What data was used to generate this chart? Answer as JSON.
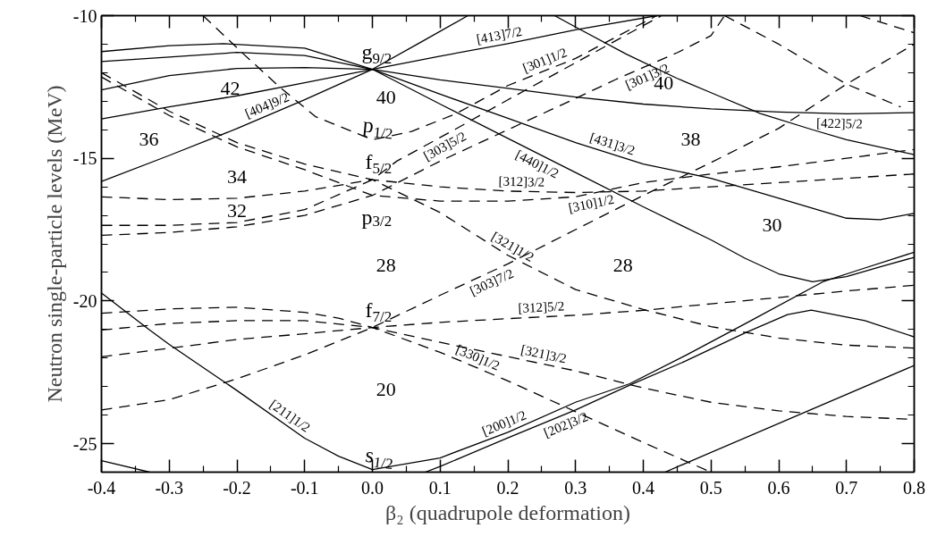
{
  "chart_data": {
    "type": "line",
    "xlabel": "β₂ (quadrupole deformation)",
    "ylabel": "Neutron single-particle levels (MeV)",
    "xlim": [
      -0.4,
      0.8
    ],
    "ylim": [
      -26,
      -10
    ],
    "xticks": [
      -0.4,
      {
        "value": -0.35,
        "label": null
      },
      -0.3,
      {
        "value": -0.25,
        "label": null
      },
      -0.2,
      {
        "value": -0.15,
        "label": null
      },
      -0.1,
      {
        "value": -0.05,
        "label": null
      },
      {
        "value": 0,
        "label": "0.0"
      },
      {
        "value": 0.05,
        "label": null
      },
      0.1,
      {
        "value": 0.15,
        "label": null
      },
      0.2,
      {
        "value": 0.25,
        "label": null
      },
      0.3,
      {
        "value": 0.35,
        "label": null
      },
      0.4,
      {
        "value": 0.45,
        "label": null
      },
      0.5,
      {
        "value": 0.55,
        "label": null
      },
      0.6,
      {
        "value": 0.65,
        "label": null
      },
      0.7,
      {
        "value": 0.75,
        "label": null
      },
      0.8
    ],
    "yticks": [
      -10,
      {
        "value": -11,
        "label": null
      },
      {
        "value": -12,
        "label": null
      },
      {
        "value": -13,
        "label": null
      },
      {
        "value": -14,
        "label": null
      },
      -15,
      {
        "value": -16,
        "label": null
      },
      {
        "value": -17,
        "label": null
      },
      {
        "value": -18,
        "label": null
      },
      {
        "value": -19,
        "label": null
      },
      -20,
      {
        "value": -21,
        "label": null
      },
      {
        "value": -22,
        "label": null
      },
      {
        "value": -23,
        "label": null
      },
      {
        "value": -24,
        "label": null
      },
      -25,
      {
        "value": -26,
        "label": null
      }
    ],
    "grid": false,
    "series": [
      {
        "color": "#000000",
        "line_style": "solid",
        "x": [
          -0.4,
          -0.3,
          -0.22,
          -0.1,
          0,
          0.1,
          0.2,
          0.3,
          0.4,
          0.5,
          0.55,
          0.6,
          0.65,
          0.7,
          0.75,
          0.8
        ],
        "values": [
          -11.26,
          -11.05,
          -10.98,
          -11.14,
          -11.88,
          -13.1,
          -14.3,
          -15.5,
          -16.7,
          -17.86,
          -18.5,
          -19.05,
          -19.33,
          -19.15,
          -18.8,
          -18.47
        ]
      },
      {
        "color": "#000000",
        "line_style": "solid",
        "x": [
          -0.4,
          -0.3,
          -0.2,
          -0.1,
          0,
          0.1,
          0.2,
          0.3,
          0.4,
          0.5,
          0.6,
          0.7,
          0.75,
          0.8
        ],
        "values": [
          -11.61,
          -11.45,
          -11.29,
          -11.4,
          -11.88,
          -12.75,
          -13.6,
          -14.45,
          -15.2,
          -15.7,
          -16.4,
          -17.1,
          -17.15,
          -16.93
        ]
      },
      {
        "color": "#000000",
        "line_style": "solid",
        "x": [
          -0.4,
          -0.3,
          -0.2,
          -0.1,
          0,
          0.1,
          0.2,
          0.3,
          0.4,
          0.5,
          0.6,
          0.7,
          0.8
        ],
        "values": [
          -12.6,
          -12.1,
          -11.85,
          -11.82,
          -11.88,
          -12.25,
          -12.55,
          -12.85,
          -13.1,
          -13.27,
          -13.38,
          -13.44,
          -13.4
        ]
      },
      {
        "color": "#000000",
        "line_style": "solid",
        "x": [
          -0.4,
          -0.3,
          -0.2,
          -0.1,
          0,
          0.1,
          0.2,
          0.3,
          0.42
        ],
        "values": [
          -13.62,
          -13.2,
          -12.81,
          -12.35,
          -11.88,
          -11.42,
          -10.98,
          -10.5,
          -10.0
        ]
      },
      {
        "color": "#000000",
        "line_style": "solid",
        "x": [
          -0.4,
          -0.3,
          -0.2,
          -0.1,
          0,
          0.07,
          0.141
        ],
        "values": [
          -15.81,
          -14.9,
          -13.96,
          -12.95,
          -11.88,
          -10.95,
          -10.0
        ]
      },
      {
        "color": "#000000",
        "line_style": "solid",
        "x": [
          0.269,
          0.3,
          0.375,
          0.45,
          0.5,
          0.573,
          0.65,
          0.7,
          0.8
        ],
        "values": [
          -10.0,
          -10.4,
          -11.35,
          -12.2,
          -12.7,
          -13.43,
          -14.0,
          -14.35,
          -14.87
        ]
      },
      {
        "color": "#000000",
        "line_style": "solid",
        "x": [
          -0.4,
          -0.33,
          -0.3,
          -0.2,
          -0.1,
          -0.05,
          0,
          0.1,
          0.2,
          0.3,
          0.38,
          0.463,
          0.551,
          0.665,
          0.72,
          0.8
        ],
        "values": [
          -19.72,
          -21.0,
          -21.52,
          -23.14,
          -24.81,
          -25.44,
          -25.91,
          -25.5,
          -24.6,
          -23.55,
          -22.9,
          -21.9,
          -20.79,
          -19.33,
          -18.9,
          -18.29
        ]
      },
      {
        "color": "#000000",
        "line_style": "solid",
        "x": [
          0.078,
          0.1,
          0.2,
          0.3,
          0.38,
          0.463,
          0.551,
          0.613,
          0.648,
          0.727,
          0.8
        ],
        "values": [
          -26.0,
          -25.8,
          -24.8,
          -23.82,
          -22.95,
          -22.1,
          -21.11,
          -20.48,
          -20.32,
          -20.69,
          -21.26
        ]
      },
      {
        "color": "#000000",
        "line_style": "solid",
        "x": [
          -0.4,
          -0.329
        ],
        "values": [
          -25.6,
          -26.0
        ]
      },
      {
        "color": "#000000",
        "line_style": "solid",
        "x": [
          0.432,
          0.8
        ],
        "values": [
          -26.0,
          -22.26
        ]
      },
      {
        "color": "#000000",
        "line_style": "dashed",
        "x": [
          -0.4,
          -0.3,
          -0.2,
          -0.1,
          -0.05,
          0,
          0.1,
          0.2,
          0.3,
          0.4,
          0.5
        ],
        "values": [
          -20.43,
          -20.28,
          -20.22,
          -20.4,
          -20.6,
          -20.93,
          -21.8,
          -22.8,
          -23.88,
          -24.96,
          -26.0
        ]
      },
      {
        "color": "#000000",
        "line_style": "dashed",
        "x": [
          -0.4,
          -0.3,
          -0.2,
          -0.1,
          0,
          0.1,
          0.2,
          0.3,
          0.4,
          0.5,
          0.6,
          0.7,
          0.8
        ],
        "values": [
          -21.02,
          -20.79,
          -20.69,
          -20.69,
          -20.93,
          -21.45,
          -21.95,
          -22.45,
          -23.05,
          -23.55,
          -23.85,
          -24.05,
          -24.15
        ]
      },
      {
        "color": "#000000",
        "line_style": "dashed",
        "x": [
          -0.4,
          -0.3,
          -0.2,
          -0.1,
          0,
          0.1,
          0.2,
          0.3,
          0.4,
          0.5,
          0.6,
          0.7,
          0.8
        ],
        "values": [
          -21.96,
          -21.66,
          -21.35,
          -21.15,
          -20.93,
          -20.75,
          -20.62,
          -20.5,
          -20.33,
          -20.1,
          -19.88,
          -19.65,
          -19.45
        ]
      },
      {
        "color": "#000000",
        "line_style": "dashed",
        "x": [
          -0.4,
          -0.3,
          -0.2,
          -0.1,
          0,
          0.1,
          0.2,
          0.3,
          0.4,
          0.5,
          0.6,
          0.7,
          0.8
        ],
        "values": [
          -23.82,
          -23.46,
          -22.73,
          -21.89,
          -20.93,
          -19.8,
          -18.7,
          -17.5,
          -16.3,
          -15.15,
          -13.95,
          -12.4,
          -11.0
        ]
      },
      {
        "color": "#000000",
        "line_style": "dashed",
        "x": [
          -0.4,
          -0.3,
          -0.2,
          -0.1,
          0,
          0.1,
          0.2,
          0.3,
          0.4,
          0.5,
          0.6,
          0.7,
          0.8
        ],
        "values": [
          -12.0,
          -13.35,
          -14.45,
          -15.2,
          -15.75,
          -16.9,
          -18.4,
          -19.6,
          -20.3,
          -20.9,
          -21.3,
          -21.55,
          -21.65
        ]
      },
      {
        "color": "#000000",
        "line_style": "dashed",
        "x": [
          -0.4,
          -0.3,
          -0.2,
          -0.1,
          0,
          0.1,
          0.2,
          0.3,
          0.4,
          0.5,
          0.6,
          0.7,
          0.8
        ],
        "values": [
          -16.35,
          -16.45,
          -16.4,
          -16.15,
          -15.75,
          -16.0,
          -16.15,
          -16.2,
          -16.15,
          -16.0,
          -15.85,
          -15.7,
          -15.55
        ]
      },
      {
        "color": "#000000",
        "line_style": "dashed",
        "x": [
          -0.4,
          -0.3,
          -0.2,
          -0.1,
          0,
          0.036,
          0.124,
          0.2,
          0.3,
          0.4,
          0.427
        ],
        "values": [
          -17.35,
          -17.35,
          -17.25,
          -16.8,
          -15.75,
          -15.1,
          -13.96,
          -12.95,
          -11.65,
          -10.35,
          -10.0
        ]
      },
      {
        "color": "#000000",
        "line_style": "dashed",
        "x": [
          -0.4,
          -0.3,
          -0.2,
          -0.1,
          0,
          0.1,
          0.2,
          0.3,
          0.4,
          0.5,
          0.6,
          0.7,
          0.8
        ],
        "values": [
          -12.15,
          -13.5,
          -14.6,
          -15.4,
          -16.3,
          -16.5,
          -16.5,
          -16.35,
          -15.85,
          -15.55,
          -15.3,
          -15.0,
          -14.69
        ]
      },
      {
        "color": "#000000",
        "line_style": "dashed",
        "x": [
          -0.4,
          -0.3,
          -0.2,
          -0.1,
          0,
          0.1,
          0.2,
          0.3,
          0.36,
          0.45,
          0.5,
          0.52
        ],
        "values": [
          -17.7,
          -17.6,
          -17.4,
          -17.0,
          -16.3,
          -15.1,
          -14.0,
          -12.9,
          -12.23,
          -11.3,
          -10.7,
          -10.0
        ]
      },
      {
        "color": "#000000",
        "line_style": "dashed",
        "x": [
          -0.25,
          -0.19,
          -0.137,
          -0.084,
          0,
          0.058,
          0.124,
          0.2,
          0.3,
          0.366,
          0.42
        ],
        "values": [
          -10.0,
          -11.35,
          -12.5,
          -13.54,
          -14.35,
          -14.06,
          -13.43,
          -12.45,
          -11.5,
          -10.67,
          -10.0
        ]
      },
      {
        "color": "#000000",
        "line_style": "dashed",
        "x": [
          0.52,
          0.6,
          0.7,
          0.78
        ],
        "values": [
          -10.0,
          -11.0,
          -12.4,
          -13.2
        ]
      },
      {
        "color": "#000000",
        "line_style": "dashed",
        "x": [
          0.72,
          0.8
        ],
        "values": [
          -10.0,
          -10.6
        ]
      }
    ],
    "annotations": [
      {
        "text": "g$_{9/2}$",
        "x": 0,
        "y": -11.88
      },
      {
        "text": "p$_{1/2}$",
        "x": 0,
        "y": -14.35
      },
      {
        "text": "f$_{5/2}$",
        "x": 0,
        "y": -15.75
      },
      {
        "text": "p$_{3/2}$",
        "x": 0,
        "y": -16.3
      },
      {
        "text": "f$_{7/2}$",
        "x": 0,
        "y": -20.93
      },
      {
        "text": "s$_{1/2}$",
        "x": 0,
        "y": -25.91
      },
      "42",
      "36",
      "34",
      "32",
      "40",
      "40",
      "38",
      "30",
      "28",
      "28",
      "20",
      {
        "text": "[413]7/2",
        "x": 0.19,
        "y": -11.024
      },
      {
        "text": "[301]1/2",
        "x": 0.26,
        "y": -11.88
      },
      {
        "text": "[301]3/2",
        "x": 0.4,
        "y": -11.817
      },
      {
        "text": "[404]9/2",
        "x": -0.15,
        "y": -13.455
      },
      {
        "text": "[303]5/2",
        "x": 0.1,
        "y": -14.27
      },
      {
        "text": "[431]3/2",
        "x": 0.35,
        "y": -14.825
      },
      {
        "text": "[440]1/2",
        "x": 0.25,
        "y": -14.9
      },
      {
        "text": "[422]5/2",
        "x": 0.69,
        "y": -13.434
      },
      {
        "text": "[312]3/2",
        "x": 0.22,
        "y": -16.16
      },
      {
        "text": "[310]1/2",
        "x": 0.32,
        "y": -16.25
      },
      {
        "text": "[321]1/2",
        "x": 0.2,
        "y": -18.4
      },
      {
        "text": "[303]7/2",
        "x": 0.17,
        "y": -19.03
      },
      {
        "text": "[312]5/2",
        "x": 0.25,
        "y": -20.56
      },
      {
        "text": "[321]3/2",
        "x": 0.25,
        "y": -22.2
      },
      {
        "text": "[330]1/2",
        "x": 0.15,
        "y": -22.3
      },
      {
        "text": "[211]1/2",
        "x": -0.13,
        "y": -24.311
      },
      {
        "text": "[200]1/2",
        "x": 0.2,
        "y": -24.6
      },
      {
        "text": "[202]3/2",
        "x": 0.28,
        "y": -24.016
      }
    ]
  }
}
